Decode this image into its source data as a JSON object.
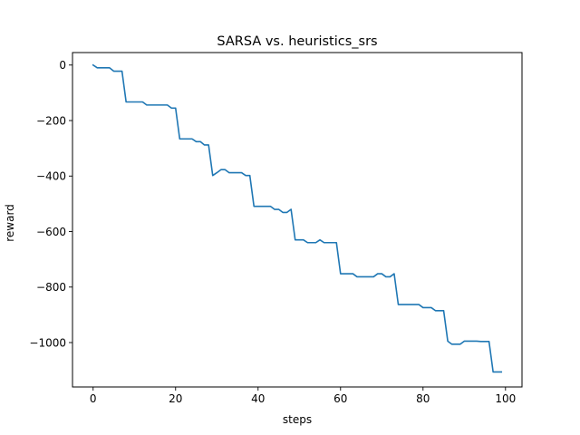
{
  "chart_data": {
    "type": "line",
    "title": "SARSA vs. heuristics_srs",
    "xlabel": "steps",
    "ylabel": "reward",
    "xlim": [
      -5,
      104
    ],
    "ylim": [
      -1160,
      45
    ],
    "xticks": [
      0,
      20,
      40,
      60,
      80,
      100
    ],
    "yticks": [
      0,
      -200,
      -400,
      -600,
      -800,
      -1000
    ],
    "xtick_labels": [
      "0",
      "20",
      "40",
      "60",
      "80",
      "100"
    ],
    "ytick_labels": [
      "0",
      "−200",
      "−400",
      "−600",
      "−800",
      "−1000"
    ],
    "grid": false,
    "legend": "none",
    "series": [
      {
        "color": "#1f77b4",
        "x": [
          0,
          1,
          2,
          3,
          4,
          5,
          6,
          7,
          8,
          9,
          10,
          11,
          12,
          13,
          14,
          15,
          16,
          17,
          18,
          19,
          20,
          21,
          22,
          23,
          24,
          25,
          26,
          27,
          28,
          29,
          30,
          31,
          32,
          33,
          34,
          35,
          36,
          37,
          38,
          39,
          40,
          41,
          42,
          43,
          44,
          45,
          46,
          47,
          48,
          49,
          50,
          51,
          52,
          53,
          54,
          55,
          56,
          57,
          58,
          59,
          60,
          61,
          62,
          63,
          64,
          65,
          66,
          67,
          68,
          69,
          70,
          71,
          72,
          73,
          74,
          75,
          76,
          77,
          78,
          79,
          80,
          81,
          82,
          83,
          84,
          85,
          86,
          87,
          88,
          89,
          90,
          91,
          92,
          93,
          94,
          95,
          96,
          97,
          98,
          99
        ],
        "y": [
          0,
          -10,
          -10,
          -10,
          -10,
          -22,
          -22,
          -22,
          -133,
          -133,
          -133,
          -133,
          -133,
          -144,
          -144,
          -144,
          -144,
          -144,
          -144,
          -155,
          -155,
          -266,
          -266,
          -266,
          -266,
          -276,
          -276,
          -288,
          -288,
          -398,
          -388,
          -377,
          -377,
          -388,
          -388,
          -388,
          -388,
          -398,
          -398,
          -509,
          -509,
          -509,
          -509,
          -509,
          -520,
          -520,
          -531,
          -531,
          -520,
          -630,
          -630,
          -630,
          -640,
          -640,
          -640,
          -630,
          -640,
          -640,
          -640,
          -640,
          -752,
          -752,
          -752,
          -752,
          -763,
          -763,
          -763,
          -763,
          -763,
          -752,
          -752,
          -763,
          -763,
          -752,
          -863,
          -863,
          -863,
          -863,
          -863,
          -863,
          -874,
          -874,
          -874,
          -885,
          -885,
          -885,
          -995,
          -1006,
          -1006,
          -1006,
          -995,
          -995,
          -995,
          -995,
          -996,
          -996,
          -996,
          -1106,
          -1106,
          -1106
        ]
      }
    ]
  }
}
